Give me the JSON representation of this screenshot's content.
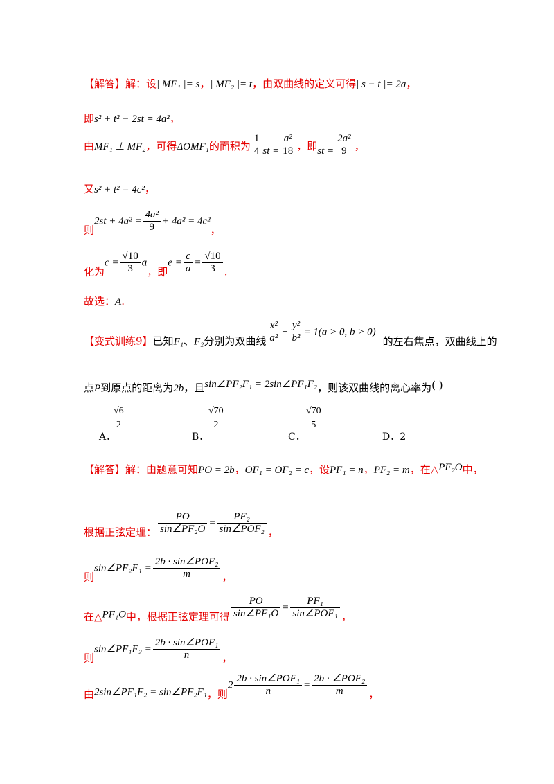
{
  "lines": {
    "l1_label": "【解答】",
    "l1_a": "解：设",
    "l1_m1": "| MF₁ |= s",
    "l1_sep": "，",
    "l1_m2": "| MF₂ |= t",
    "l1_b": "，由双曲线的定义可得",
    "l1_m3": "| s − t |= 2a",
    "l1_end": "，",
    "l2_a": "即",
    "l2_m": "s² + t² − 2st = 4a²",
    "l2_end": "，",
    "l3_a": "由",
    "l3_m1": "MF₁ ⊥ MF₂",
    "l3_b": "，可得",
    "l3_m2": "ΔOMF₁",
    "l3_c": "的面积为",
    "l3_m3a": "1",
    "l3_m3b": "4",
    "l3_m3c": "st =",
    "l3_m3d": "a²",
    "l3_m3e": "18",
    "l3_d": "，即",
    "l3_m4a": "st =",
    "l3_m4b": "2a²",
    "l3_m4c": "9",
    "l3_end": "，",
    "l4_a": "又",
    "l4_m": "s² + t² = 4c²",
    "l4_end": "，",
    "l5_a": "则",
    "l5_m1": "2st + 4a² =",
    "l5_m2": "4a²",
    "l5_m3": "9",
    "l5_m4": "+ 4a² = 4c²",
    "l5_end": "，",
    "l6_a": "化为",
    "l6_m1": "c =",
    "l6_m2": "√10",
    "l6_m3": "3",
    "l6_m4": "a",
    "l6_b": "，即",
    "l6_m5": "e =",
    "l6_m6": "c",
    "l6_m7": "a",
    "l6_m8": "=",
    "l6_m9": "√10",
    "l6_m10": "3",
    "l6_end": ".",
    "l7_a": "故选：",
    "l7_m": "A",
    "l7_end": "."
  },
  "problem": {
    "label": "【变式训练9】",
    "p1_a": "已知",
    "p1_f1": "F₁",
    "p1_sep": "、",
    "p1_f2": "F₂",
    "p1_b": "分别为双曲线",
    "p1_x": "x²",
    "p1_a2": "a²",
    "p1_minus": "−",
    "p1_y": "y²",
    "p1_b2": "b²",
    "p1_eq": "= 1(a > 0, b > 0)",
    "p1_c": "的左右焦点，双曲线上的",
    "p2_a": "点",
    "p2_p": "P",
    "p2_b": "到原点的距离为",
    "p2_2b": "2b",
    "p2_c": "，且",
    "p2_m": "sin∠PF₂F₁ = 2sin∠PF₁F₂",
    "p2_d": "，则该双曲线的离心率为",
    "p2_paren": "(        )"
  },
  "options": {
    "a_label": "A．",
    "a_num": "√6",
    "a_den": "2",
    "b_label": "B．",
    "b_num": "√70",
    "b_den": "2",
    "c_label": "C．",
    "c_num": "√70",
    "c_den": "5",
    "d_label": "D．2"
  },
  "sol2": {
    "s1_label": "【解答】",
    "s1_a": "解：由题意可知",
    "s1_m1": "PO = 2b",
    "s1_sep": "，",
    "s1_m2": "OF₁ = OF₂ = c",
    "s1_b": "，设",
    "s1_m3": "PF₁ = n",
    "s1_sep2": "，",
    "s1_m4": "PF₂ = m",
    "s1_c": "，在△",
    "s1_m5": "PF₂O",
    "s1_d": "中，",
    "s2_a": "根据正弦定理：",
    "s2_n1": "PO",
    "s2_d1": "sin∠PF₂O",
    "s2_eq": "=",
    "s2_n2": "PF₂",
    "s2_d2": "sin∠POF₂",
    "s2_end": "，",
    "s3_a": "则",
    "s3_m1": "sin∠PF₂F₁ =",
    "s3_n": "2b · sin∠POF₂",
    "s3_d": "m",
    "s3_end": "，",
    "s4_a": "在△",
    "s4_m": "PF₁O",
    "s4_b": "中，根据正弦定理可得",
    "s4_n1": "PO",
    "s4_d1": "sin∠PF₁O",
    "s4_eq": "=",
    "s4_n2": "PF₁",
    "s4_d2": "sin∠POF₁",
    "s4_end": "，",
    "s5_a": "则",
    "s5_m1": "sin∠PF₁F₂ =",
    "s5_n": "2b · sin∠POF₁",
    "s5_d": "n",
    "s5_end": "，",
    "s6_a": "由",
    "s6_m1": "2sin∠PF₁F₂ = sin∠PF₂F₁",
    "s6_b": "，则",
    "s6_m2": "2",
    "s6_n1": "2b · sin∠POF₁",
    "s6_d1": "n",
    "s6_eq": "=",
    "s6_n2": "2b · ∠POF₂",
    "s6_d2": "m",
    "s6_end": "，"
  }
}
